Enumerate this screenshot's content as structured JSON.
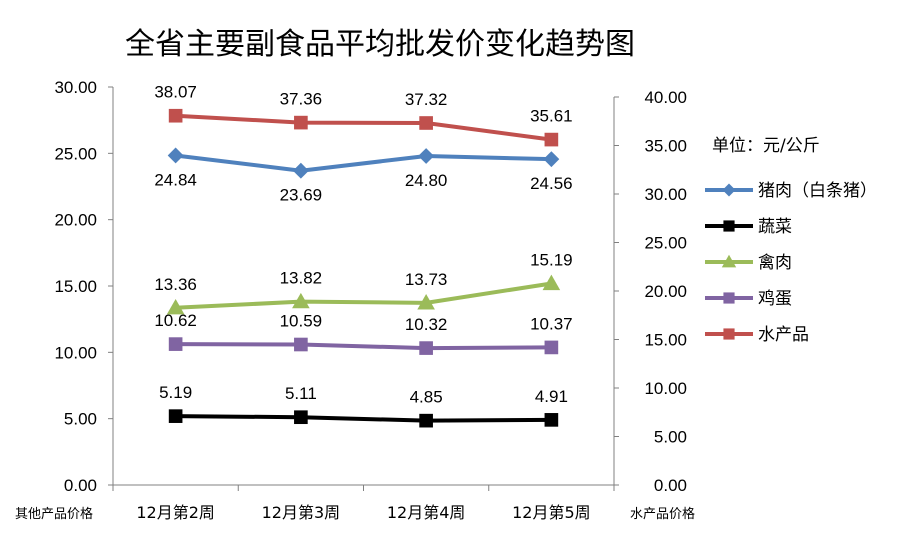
{
  "chart_data": {
    "type": "line",
    "title": "全省主要副食品平均批发价变化趋势图",
    "categories": [
      "12月第2周",
      "12月第3周",
      "12月第4周",
      "12月第5周"
    ],
    "y_left": {
      "label": "其他产品价格",
      "min": 0,
      "max": 30,
      "step": 5,
      "ticks": [
        "0.00",
        "5.00",
        "10.00",
        "15.00",
        "20.00",
        "25.00",
        "30.00"
      ]
    },
    "y_right": {
      "label": "水产品价格",
      "min": 0,
      "max": 40,
      "step": 5,
      "ticks": [
        "0.00",
        "5.00",
        "10.00",
        "15.00",
        "20.00",
        "25.00",
        "30.00",
        "35.00",
        "40.00"
      ]
    },
    "unit_label": "单位：元/公斤",
    "legend_position": "right",
    "grid": false,
    "series": [
      {
        "name": "猪肉（白条猪）",
        "axis": "left",
        "color": "#4F81BD",
        "marker": "diamond",
        "values": [
          24.84,
          23.69,
          24.8,
          24.56
        ],
        "labels": [
          "24.84",
          "23.69",
          "24.80",
          "24.56"
        ],
        "label_pos": "below"
      },
      {
        "name": "蔬菜",
        "axis": "left",
        "color": "#000000",
        "marker": "square",
        "values": [
          5.19,
          5.11,
          4.85,
          4.91
        ],
        "labels": [
          "5.19",
          "5.11",
          "4.85",
          "4.91"
        ],
        "label_pos": "above"
      },
      {
        "name": "禽肉",
        "axis": "left",
        "color": "#9BBB59",
        "marker": "triangle",
        "values": [
          13.36,
          13.82,
          13.73,
          15.19
        ],
        "labels": [
          "13.36",
          "13.82",
          "13.73",
          "15.19"
        ],
        "label_pos": "above"
      },
      {
        "name": "鸡蛋",
        "axis": "left",
        "color": "#8064A2",
        "marker": "square",
        "values": [
          10.62,
          10.59,
          10.32,
          10.37
        ],
        "labels": [
          "10.62",
          "10.59",
          "10.32",
          "10.37"
        ],
        "label_pos": "above"
      },
      {
        "name": "水产品",
        "axis": "right",
        "color": "#C0504D",
        "marker": "square",
        "values": [
          38.07,
          37.36,
          37.32,
          35.61
        ],
        "labels": [
          "38.07",
          "37.36",
          "37.32",
          "35.61"
        ],
        "label_pos": "above"
      }
    ]
  }
}
